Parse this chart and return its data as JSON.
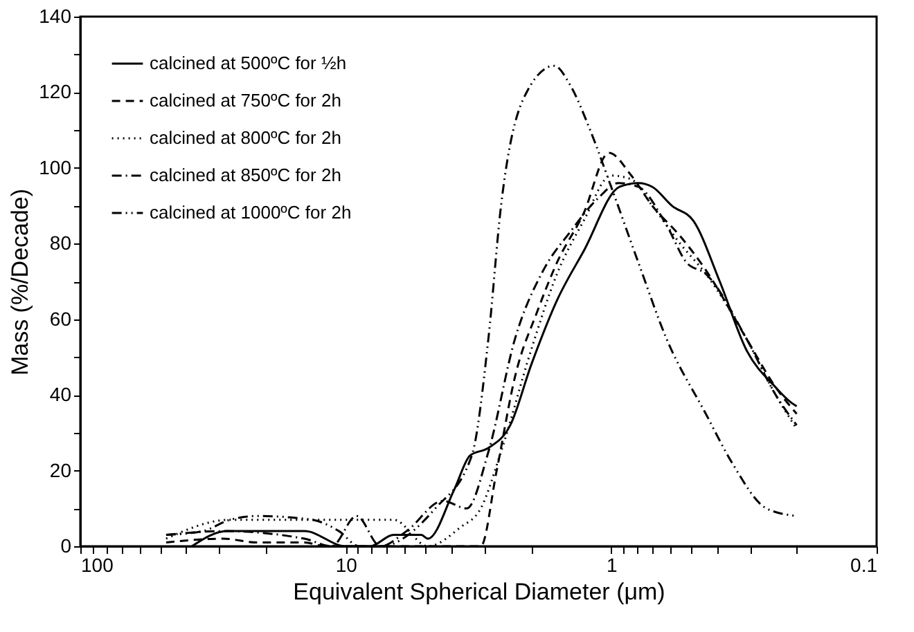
{
  "chart_data": {
    "type": "line",
    "xlabel": "Equivalent Spherical Diameter (μm)",
    "ylabel": "Mass (%/Decade)",
    "log": "x",
    "xlim": [
      100,
      0.1
    ],
    "ylim": [
      0,
      140
    ],
    "xticks": [
      100,
      {
        "value": 90,
        "label": null
      },
      {
        "value": 80,
        "label": null
      },
      {
        "value": 70,
        "label": null
      },
      {
        "value": 60,
        "label": null
      },
      {
        "value": 50,
        "label": null
      },
      {
        "value": 40,
        "label": null
      },
      {
        "value": 30,
        "label": null
      },
      {
        "value": 20,
        "label": null
      },
      10,
      {
        "value": 9,
        "label": null
      },
      {
        "value": 8,
        "label": null
      },
      {
        "value": 7,
        "label": null
      },
      {
        "value": 6,
        "label": null
      },
      {
        "value": 5,
        "label": null
      },
      {
        "value": 4,
        "label": null
      },
      {
        "value": 3,
        "label": null
      },
      {
        "value": 2,
        "label": null
      },
      1,
      {
        "value": 0.9,
        "label": null
      },
      {
        "value": 0.8,
        "label": null
      },
      {
        "value": 0.7,
        "label": null
      },
      {
        "value": 0.6,
        "label": null
      },
      {
        "value": 0.5,
        "label": null
      },
      {
        "value": 0.4,
        "label": null
      },
      {
        "value": 0.3,
        "label": null
      },
      {
        "value": 0.2,
        "label": null
      },
      {
        "value": 0.1,
        "label": "0.1"
      }
    ],
    "yticks": [
      0,
      {
        "value": 10,
        "label": null
      },
      20,
      {
        "value": 30,
        "label": null
      },
      40,
      {
        "value": 50,
        "label": null
      },
      60,
      {
        "value": 70,
        "label": null
      },
      80,
      {
        "value": 90,
        "label": null
      },
      100,
      {
        "value": 110,
        "label": null
      },
      120,
      {
        "value": 130,
        "label": null
      },
      140
    ],
    "grid": false,
    "legend": "top left",
    "marker": "none",
    "series": [
      {
        "name": "calcined at  500ºC for ½h",
        "color": "#000000",
        "line_style": "solid",
        "x": [
          38,
          28,
          14.3,
          10,
          8.1,
          6.6,
          5.2,
          4.9,
          3.9,
          3.4,
          2.9,
          2.4,
          2.0,
          1.6,
          1.27,
          0.93,
          0.79,
          0.7,
          0.59,
          0.49,
          0.39,
          0.31,
          0.24,
          0.21,
          0.2
        ],
        "values": [
          0,
          4,
          4,
          0,
          0,
          3,
          3,
          2,
          15,
          24,
          26,
          32,
          48,
          65,
          78,
          95,
          96,
          95,
          90,
          86,
          70,
          52,
          42,
          38,
          37
        ]
      },
      {
        "name": "calcined at  750ºC for 2h",
        "color": "#000000",
        "line_style": "dashed",
        "x": [
          47.5,
          29,
          21.5,
          14.3,
          11.9,
          3.1,
          2.7,
          2.3,
          1.9,
          1.6,
          1.27,
          1.02,
          0.84,
          0.7,
          0.55,
          0.44,
          0.31,
          0.24,
          0.2
        ],
        "values": [
          1,
          2,
          1,
          1,
          0,
          0,
          20,
          45,
          62,
          75,
          88,
          104,
          98,
          90,
          82,
          73,
          55,
          42,
          35
        ]
      },
      {
        "name": "calcined at  800ºC for 2h",
        "color": "#000000",
        "line_style": "dotted",
        "x": [
          47.5,
          27.3,
          21.5,
          13.4,
          9.4,
          6.6,
          4.9,
          3.7,
          3.1,
          2.6,
          2.0,
          1.6,
          1.27,
          1.0,
          0.84,
          0.7,
          0.55,
          0.44,
          0.31,
          0.24,
          0.2
        ],
        "values": [
          2,
          7,
          7,
          7,
          7,
          7,
          0,
          5,
          10,
          25,
          52,
          72,
          86,
          98,
          97,
          90,
          80,
          72,
          55,
          40,
          31
        ]
      },
      {
        "name": "calcined at  850ºC for 2h",
        "color": "#000000",
        "line_style": "dashdot",
        "x": [
          47.5,
          29,
          14.3,
          11.3,
          9.1,
          7.4,
          5.9,
          4.3,
          3.5,
          2.9,
          2.3,
          1.8,
          1.43,
          1.12,
          0.94,
          0.79,
          0.62,
          0.52,
          0.44,
          0.31,
          0.24,
          0.2
        ],
        "values": [
          3,
          4,
          2,
          0,
          8,
          0,
          4,
          12,
          10,
          25,
          55,
          73,
          83,
          92,
          96,
          95,
          85,
          75,
          72,
          55,
          40,
          32
        ]
      },
      {
        "name": "calcined at 1000ºC for 2h",
        "color": "#000000",
        "line_style": "dashdotdot",
        "x": [
          47.5,
          34.6,
          27.3,
          21.5,
          13.4,
          10.6,
          8.9,
          7.4,
          4.6,
          3.35,
          2.9,
          2.6,
          2.15,
          1.64,
          1.43,
          1.2,
          1.0,
          0.79,
          0.62,
          0.44,
          0.35,
          0.26,
          0.2
        ],
        "values": [
          3,
          4,
          7,
          8,
          7,
          4,
          0,
          0,
          10,
          24,
          55,
          90,
          118,
          127,
          122,
          110,
          95,
          75,
          55,
          35,
          22,
          10,
          8
        ]
      }
    ]
  }
}
